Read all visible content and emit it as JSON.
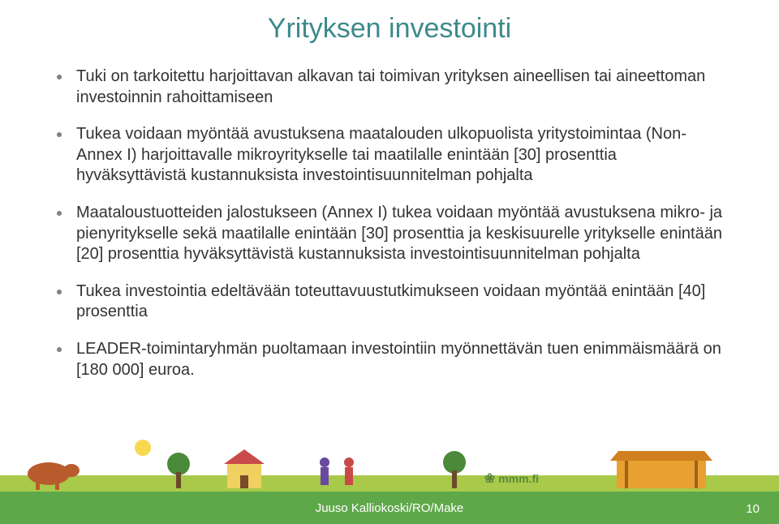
{
  "colors": {
    "title": "#3d8a8a",
    "body_text": "#333333",
    "bullet_dot": "#808080",
    "footer_bar_bg": "#5fa84a",
    "footer_text": "#ffffff",
    "pagenum": "#ffffff",
    "mmm_logo": "#5a8a3a",
    "illus_ground": "#a8c94a",
    "illus_cow": "#b85c2e",
    "illus_house_roof": "#c94a4a",
    "illus_house_wall": "#f0d060",
    "illus_tree": "#4a8a3a",
    "illus_person1": "#6a4aa0",
    "illus_person2": "#c94a4a",
    "illus_stall": "#e8a030",
    "illus_sun": "#f8d850"
  },
  "typography": {
    "title_fontsize": 34,
    "body_fontsize": 20,
    "footer_fontsize": 15
  },
  "title": "Yrityksen investointi",
  "bullets": [
    "Tuki on tarkoitettu harjoittavan alkavan tai toimivan yrityksen aineellisen tai aineettoman investoinnin rahoittamiseen",
    "Tukea voidaan myöntää avustuksena maatalouden ulkopuolista yritystoimintaa (Non-Annex I) harjoittavalle mikroyritykselle tai maatilalle enintään [30] prosenttia hyväksyttävistä kustannuksista investointisuunnitelman pohjalta",
    "Maataloustuotteiden jalostukseen (Annex I) tukea voidaan myöntää avustuksena mikro- ja pienyritykselle sekä maatilalle enintään [30] prosenttia ja keskisuurelle yritykselle enintään [20] prosenttia hyväksyttävistä kustannuksista investointisuunnitelman pohjalta",
    "Tukea investointia edeltävään toteuttavuustutkimukseen voidaan myöntää enintään [40] prosenttia",
    "LEADER-toimintaryhmän puoltamaan investointiin myönnettävän tuen enimmäismäärä on [180 000] euroa."
  ],
  "footer": {
    "author": "Juuso Kalliokoski/RO/Make",
    "page": "10",
    "logo_text": "mmm.fi"
  }
}
